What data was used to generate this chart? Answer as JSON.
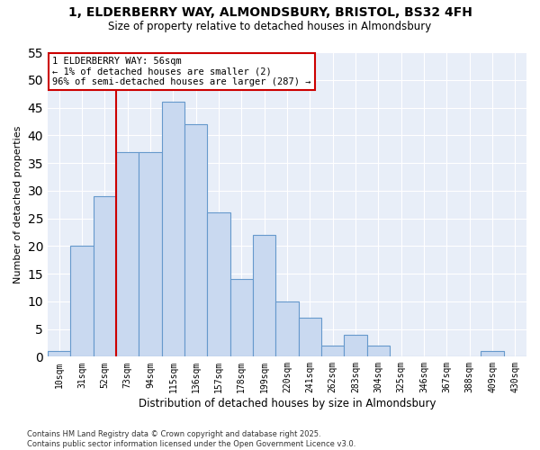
{
  "title_line1": "1, ELDERBERRY WAY, ALMONDSBURY, BRISTOL, BS32 4FH",
  "title_line2": "Size of property relative to detached houses in Almondsbury",
  "xlabel": "Distribution of detached houses by size in Almondsbury",
  "ylabel": "Number of detached properties",
  "bar_labels": [
    "10sqm",
    "31sqm",
    "52sqm",
    "73sqm",
    "94sqm",
    "115sqm",
    "136sqm",
    "157sqm",
    "178sqm",
    "199sqm",
    "220sqm",
    "241sqm",
    "262sqm",
    "283sqm",
    "304sqm",
    "325sqm",
    "346sqm",
    "367sqm",
    "388sqm",
    "409sqm",
    "430sqm"
  ],
  "bar_values": [
    1,
    20,
    29,
    37,
    37,
    46,
    42,
    26,
    14,
    22,
    10,
    7,
    2,
    4,
    2,
    0,
    0,
    0,
    0,
    1,
    0
  ],
  "bar_color": "#c9d9f0",
  "bar_edge_color": "#6699cc",
  "vline_index": 2,
  "vline_color": "#cc0000",
  "annotation_text": "1 ELDERBERRY WAY: 56sqm\n← 1% of detached houses are smaller (2)\n96% of semi-detached houses are larger (287) →",
  "annotation_box_color": "#cc0000",
  "ylim": [
    0,
    55
  ],
  "yticks": [
    0,
    5,
    10,
    15,
    20,
    25,
    30,
    35,
    40,
    45,
    50,
    55
  ],
  "footnote": "Contains HM Land Registry data © Crown copyright and database right 2025.\nContains public sector information licensed under the Open Government Licence v3.0.",
  "bg_color": "#e8eef8",
  "fig_bg_color": "#ffffff",
  "grid_color": "#ffffff"
}
